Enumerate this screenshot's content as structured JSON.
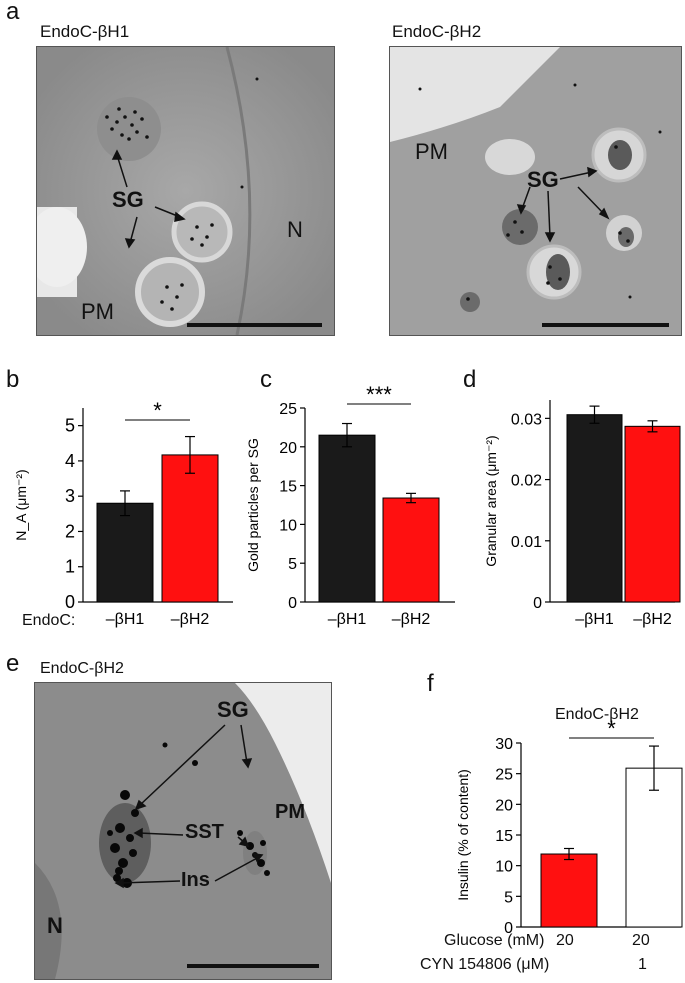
{
  "panels": {
    "a": "a",
    "b": "b",
    "c": "c",
    "d": "d",
    "e": "e",
    "f": "f"
  },
  "micrograph_a1": {
    "title": "EndoC-βH1",
    "labels": {
      "sg": "SG",
      "n": "N",
      "pm": "PM"
    }
  },
  "micrograph_a2": {
    "title": "EndoC-βH2",
    "labels": {
      "sg": "SG",
      "pm": "PM"
    }
  },
  "micrograph_e": {
    "title": "EndoC-βH2",
    "labels": {
      "sg": "SG",
      "sst": "SST",
      "pm": "PM",
      "ins": "Ins",
      "n": "N"
    }
  },
  "colors": {
    "black_bar": "#1a1a1a",
    "red_bar": "#ff1010",
    "white_bar": "#ffffff"
  },
  "row_label": "EndoC:",
  "chart_data": [
    {
      "panel": "b",
      "type": "bar",
      "categories": [
        "–βH1",
        "–βH2"
      ],
      "values": [
        2.8,
        4.17
      ],
      "errors": [
        0.35,
        0.52
      ],
      "ylabel": "N_A (μm⁻²)",
      "ylim": [
        0,
        5.5
      ],
      "yticks": [
        "0",
        "1",
        "2",
        "3",
        "4",
        "5"
      ],
      "significance": "*"
    },
    {
      "panel": "c",
      "type": "bar",
      "categories": [
        "–βH1",
        "–βH2"
      ],
      "values": [
        21.5,
        13.4
      ],
      "errors": [
        1.5,
        0.6
      ],
      "ylabel": "Gold particles per SG",
      "ylim": [
        0,
        25
      ],
      "yticks": [
        "0",
        "5",
        "10",
        "15",
        "20",
        "25"
      ],
      "significance": "***"
    },
    {
      "panel": "d",
      "type": "bar",
      "categories": [
        "–βH1",
        "–βH2"
      ],
      "values": [
        0.0306,
        0.0287
      ],
      "errors": [
        0.0014,
        0.0009
      ],
      "ylabel": "Granular area (μm⁻²)",
      "ylim": [
        0,
        0.033
      ],
      "yticks": [
        "0",
        "0.01",
        "0.02",
        "0.03"
      ],
      "significance": ""
    },
    {
      "panel": "f",
      "type": "bar",
      "title": "EndoC-βH2",
      "categories": [
        "20 / –",
        "20 / 1"
      ],
      "values": [
        11.9,
        25.9
      ],
      "errors": [
        0.9,
        3.6
      ],
      "ylabel": "Insulin (% of content)",
      "ylim": [
        0,
        30
      ],
      "yticks": [
        "0",
        "5",
        "10",
        "15",
        "20",
        "25",
        "30"
      ],
      "significance": "*",
      "table": {
        "glucose_label": "Glucose (mM)",
        "glucose_values": [
          "20",
          "20"
        ],
        "cyn_label": "CYN 154806 (μM)",
        "cyn_values": [
          "",
          "1"
        ]
      }
    }
  ]
}
